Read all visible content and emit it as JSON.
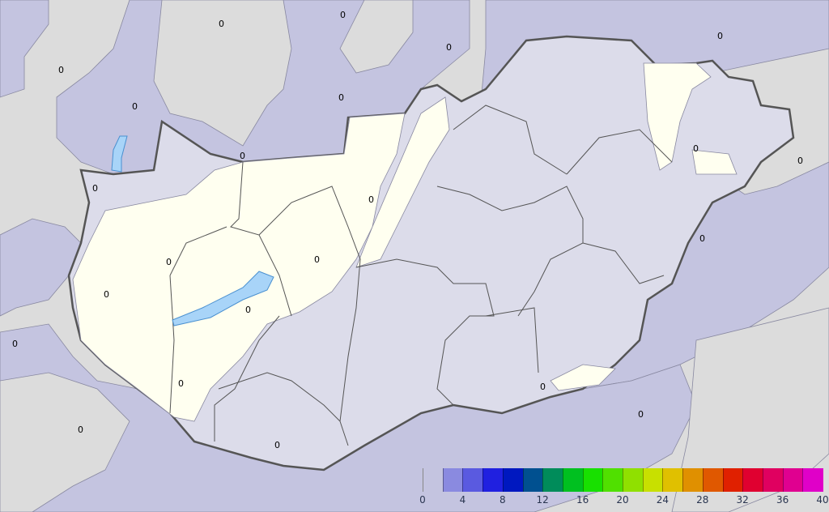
{
  "map": {
    "colors": {
      "background": "#dcdcdc",
      "outside_low": "#c4c4e0",
      "country_zero": "#dcdcea",
      "country_below": "#fffff0",
      "lakes": "#a8d4f8",
      "border": "#555555"
    },
    "contour_labels": [
      "0",
      "0",
      "0",
      "0",
      "0",
      "0",
      "0",
      "0",
      "0",
      "0",
      "0",
      "0",
      "0",
      "0",
      "0",
      "0",
      "0",
      "0",
      "0",
      "0",
      "0",
      "0",
      "0"
    ]
  },
  "legend": {
    "tick_labels": [
      "0",
      "4",
      "8",
      "12",
      "16",
      "20",
      "24",
      "28",
      "32",
      "36",
      "40"
    ],
    "min": 0,
    "max": 40,
    "step": 2,
    "bins": [
      {
        "from": 2,
        "to": 4,
        "color": "#8a8ae0"
      },
      {
        "from": 4,
        "to": 6,
        "color": "#5a5ae0"
      },
      {
        "from": 6,
        "to": 8,
        "color": "#2020e0"
      },
      {
        "from": 8,
        "to": 10,
        "color": "#0018c0"
      },
      {
        "from": 10,
        "to": 12,
        "color": "#005090"
      },
      {
        "from": 12,
        "to": 14,
        "color": "#008c5a"
      },
      {
        "from": 14,
        "to": 16,
        "color": "#00c020"
      },
      {
        "from": 16,
        "to": 18,
        "color": "#18e000"
      },
      {
        "from": 18,
        "to": 20,
        "color": "#50e000"
      },
      {
        "from": 20,
        "to": 22,
        "color": "#90e000"
      },
      {
        "from": 22,
        "to": 24,
        "color": "#c8e000"
      },
      {
        "from": 24,
        "to": 26,
        "color": "#e0c000"
      },
      {
        "from": 26,
        "to": 28,
        "color": "#e09000"
      },
      {
        "from": 28,
        "to": 30,
        "color": "#e05800"
      },
      {
        "from": 30,
        "to": 32,
        "color": "#e02000"
      },
      {
        "from": 32,
        "to": 34,
        "color": "#e00030"
      },
      {
        "from": 34,
        "to": 36,
        "color": "#e00060"
      },
      {
        "from": 36,
        "to": 38,
        "color": "#e00090"
      },
      {
        "from": 38,
        "to": 40,
        "color": "#e000c8"
      }
    ]
  }
}
